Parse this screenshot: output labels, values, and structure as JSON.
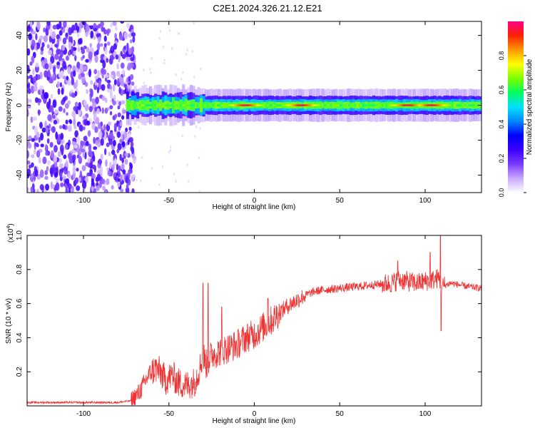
{
  "title": "C2E1.2024.326.21.12.E21",
  "colors": {
    "snr_line": "#ee3333",
    "colormap": [
      "#ffffff",
      "#c9a8ff",
      "#7a3cff",
      "#3a00ff",
      "#0000ff",
      "#0088ff",
      "#00e0ff",
      "#00ff60",
      "#7dff00",
      "#ffff00",
      "#ff9900",
      "#ff2200",
      "#ff0088"
    ]
  },
  "chart_data": [
    {
      "type": "heatmap",
      "title": "C2E1.2024.326.21.12.E21",
      "xlabel": "Height of straight line (km)",
      "ylabel": "Frequency (Hz)",
      "xlim": [
        -133,
        133
      ],
      "ylim": [
        -50,
        48
      ],
      "xticks": [
        -100,
        -50,
        0,
        50,
        100
      ],
      "yticks": [
        -40,
        -20,
        0,
        20,
        40
      ],
      "colorbar": {
        "label": "Normalized spectral amplitude",
        "range": [
          0,
          1
        ],
        "ticks": [
          0.0,
          0.2,
          0.4,
          0.6,
          0.8
        ]
      },
      "features": {
        "broadband_noise_x_range": [
          -133,
          -70
        ],
        "narrow_band_center_hz": 0,
        "narrow_band_x_range": [
          -75,
          133
        ],
        "peak_amplitude_x": [
          -5,
          28,
          90,
          104
        ]
      }
    },
    {
      "type": "line",
      "xlabel": "Height of straight line (km)",
      "ylabel": "SNR (10 * v/v)",
      "y_multiplier_label": "(x10",
      "y_multiplier_exp": "4",
      "y_multiplier_close": ")",
      "xlim": [
        -133,
        133
      ],
      "ylim": [
        0,
        1.0
      ],
      "xticks": [
        -100,
        -50,
        0,
        50,
        100
      ],
      "yticks": [
        0.2,
        0.4,
        0.6,
        0.8,
        1.0
      ],
      "series": [
        {
          "color": "#ee3333",
          "x": [
            -133,
            -120,
            -100,
            -80,
            -72,
            -68,
            -65,
            -62,
            -58,
            -55,
            -52,
            -48,
            -45,
            -40,
            -35,
            -32,
            -30,
            -28,
            -25,
            -20,
            -15,
            -10,
            -5,
            0,
            5,
            10,
            15,
            20,
            25,
            30,
            35,
            40,
            50,
            60,
            70,
            80,
            85,
            90,
            95,
            100,
            105,
            108,
            110,
            112,
            115,
            120,
            125,
            133
          ],
          "y": [
            0.02,
            0.02,
            0.02,
            0.02,
            0.03,
            0.07,
            0.12,
            0.18,
            0.22,
            0.2,
            0.15,
            0.18,
            0.14,
            0.12,
            0.14,
            0.22,
            0.3,
            0.24,
            0.3,
            0.32,
            0.34,
            0.36,
            0.4,
            0.42,
            0.46,
            0.5,
            0.55,
            0.59,
            0.62,
            0.65,
            0.67,
            0.68,
            0.69,
            0.7,
            0.71,
            0.72,
            0.74,
            0.73,
            0.72,
            0.73,
            0.74,
            0.75,
            0.7,
            0.71,
            0.72,
            0.71,
            0.7,
            0.69
          ],
          "spikes": [
            {
              "x": -30,
              "y": 0.72
            },
            {
              "x": -27,
              "y": 0.72
            },
            {
              "x": -19,
              "y": 0.58
            },
            {
              "x": 8,
              "y": 0.63
            },
            {
              "x": 84,
              "y": 0.85
            },
            {
              "x": 103,
              "y": 0.9
            },
            {
              "x": 109,
              "y": 1.0
            },
            {
              "x": 109.3,
              "y": 0.44
            }
          ]
        }
      ]
    }
  ]
}
